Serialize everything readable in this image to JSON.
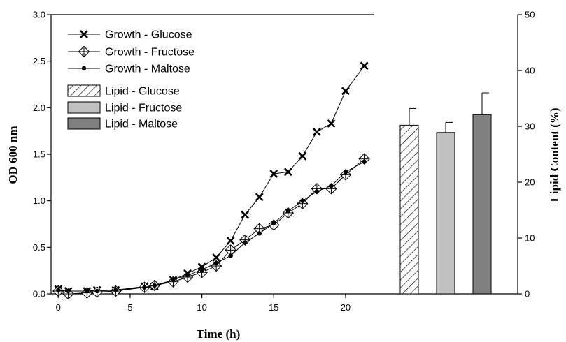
{
  "chart_data": {
    "type": "line",
    "title": "",
    "xlabel": "Time (h)",
    "ylabel": "OD 600 nm",
    "y2label": "Lipid Content (%)",
    "xlim": [
      -0.5,
      22
    ],
    "ylim": [
      0,
      3.0
    ],
    "y2lim": [
      0,
      50
    ],
    "xticks": [
      0,
      5,
      10,
      15,
      20
    ],
    "xtick_labels": [
      "0",
      "5",
      "10",
      "15",
      "20"
    ],
    "yticks": [
      0,
      0.5,
      1.0,
      1.5,
      2.0,
      2.5,
      3.0
    ],
    "ytick_labels": [
      "0.0",
      "0.5",
      "1.0",
      "1.5",
      "2.0",
      "2.5",
      "3.0"
    ],
    "y2ticks": [
      0,
      10,
      20,
      30,
      40,
      50
    ],
    "y2tick_labels": [
      "0",
      "10",
      "20",
      "30",
      "40",
      "50"
    ],
    "grid": false,
    "legend_position": "top-left",
    "series": [
      {
        "name": "Growth - Glucose",
        "marker": "x",
        "color": "#000000",
        "x": [
          0,
          0.7,
          2,
          2.7,
          4,
          6,
          6.7,
          8,
          9,
          10,
          11,
          12,
          13,
          14,
          15,
          16,
          17,
          18,
          19,
          20,
          21.3
        ],
        "y": [
          0.05,
          0.03,
          0.03,
          0.04,
          0.04,
          0.08,
          0.08,
          0.15,
          0.22,
          0.29,
          0.39,
          0.57,
          0.85,
          1.04,
          1.29,
          1.31,
          1.48,
          1.74,
          1.83,
          2.18,
          2.45
        ]
      },
      {
        "name": "Growth - Fructose",
        "marker": "diamond",
        "color": "#000000",
        "x": [
          0,
          0.7,
          2,
          2.7,
          4,
          6,
          6.7,
          8,
          9,
          10,
          11,
          12,
          13,
          14,
          15,
          16,
          17,
          18,
          19,
          20,
          21.3
        ],
        "y": [
          0.03,
          0.0,
          0.01,
          0.02,
          0.03,
          0.07,
          0.09,
          0.13,
          0.18,
          0.23,
          0.3,
          0.47,
          0.58,
          0.7,
          0.74,
          0.87,
          0.97,
          1.13,
          1.13,
          1.28,
          1.45
        ]
      },
      {
        "name": "Growth - Maltose",
        "marker": "circle",
        "color": "#000000",
        "x": [
          0,
          0.7,
          2,
          2.7,
          4,
          6,
          6.7,
          8,
          9,
          10,
          11,
          12,
          13,
          14,
          15,
          16,
          17,
          18,
          19,
          20,
          21.3
        ],
        "y": [
          0.04,
          0.03,
          0.03,
          0.03,
          0.04,
          0.07,
          0.09,
          0.15,
          0.2,
          0.26,
          0.33,
          0.41,
          0.55,
          0.65,
          0.76,
          0.89,
          1.0,
          1.1,
          1.16,
          1.31,
          1.42
        ]
      }
    ],
    "bars": [
      {
        "name": "Lipid - Glucose",
        "value": 30.2,
        "error": 3.0,
        "fill": "hatch"
      },
      {
        "name": "Lipid - Fructose",
        "value": 28.9,
        "error": 1.8,
        "fill": "#c0c0c0"
      },
      {
        "name": "Lipid - Maltose",
        "value": 32.1,
        "error": 3.9,
        "fill": "#808080"
      }
    ]
  }
}
